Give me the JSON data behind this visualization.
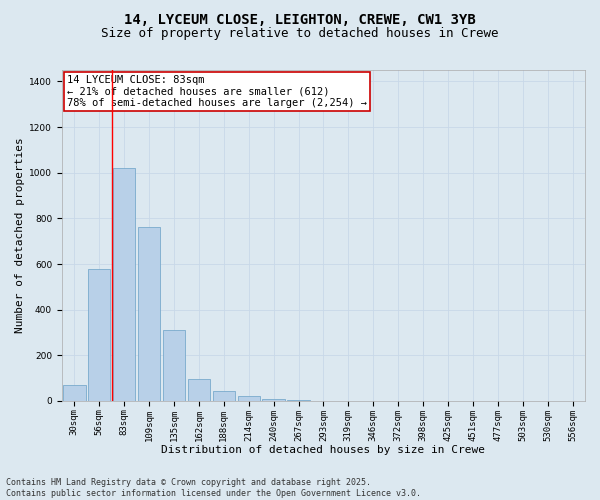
{
  "title_line1": "14, LYCEUM CLOSE, LEIGHTON, CREWE, CW1 3YB",
  "title_line2": "Size of property relative to detached houses in Crewe",
  "xlabel": "Distribution of detached houses by size in Crewe",
  "ylabel": "Number of detached properties",
  "categories": [
    "30sqm",
    "56sqm",
    "83sqm",
    "109sqm",
    "135sqm",
    "162sqm",
    "188sqm",
    "214sqm",
    "240sqm",
    "267sqm",
    "293sqm",
    "319sqm",
    "346sqm",
    "372sqm",
    "398sqm",
    "425sqm",
    "451sqm",
    "477sqm",
    "503sqm",
    "530sqm",
    "556sqm"
  ],
  "values": [
    70,
    580,
    1020,
    760,
    310,
    95,
    42,
    22,
    10,
    5,
    0,
    0,
    0,
    0,
    0,
    0,
    0,
    0,
    0,
    0,
    0
  ],
  "bar_color": "#b8d0e8",
  "bar_edge_color": "#7aaacc",
  "annotation_title": "14 LYCEUM CLOSE: 83sqm",
  "annotation_line2": "← 21% of detached houses are smaller (612)",
  "annotation_line3": "78% of semi-detached houses are larger (2,254) →",
  "annotation_border_color": "#cc0000",
  "ylim": [
    0,
    1450
  ],
  "yticks": [
    0,
    200,
    400,
    600,
    800,
    1000,
    1200,
    1400
  ],
  "grid_color": "#c8d8e8",
  "background_color": "#dce8f0",
  "footer_line1": "Contains HM Land Registry data © Crown copyright and database right 2025.",
  "footer_line2": "Contains public sector information licensed under the Open Government Licence v3.0.",
  "title_fontsize": 10,
  "subtitle_fontsize": 9,
  "axis_label_fontsize": 8,
  "tick_fontsize": 6.5,
  "annotation_fontsize": 7.5,
  "footer_fontsize": 6
}
